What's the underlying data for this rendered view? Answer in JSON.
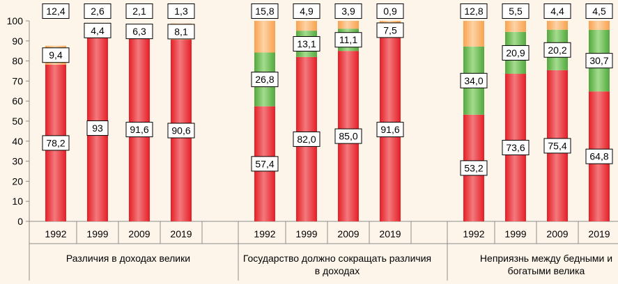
{
  "chart_data": {
    "type": "bar",
    "stacked": true,
    "ylim": [
      0,
      100
    ],
    "y_ticks": [
      "0",
      "10",
      "20",
      "30",
      "40",
      "50",
      "60",
      "70",
      "80",
      "90",
      "100"
    ],
    "grid": false,
    "colors": {
      "red": "#e8353b",
      "green": "#63b84e",
      "orange": "#fbb36a",
      "background": "#fef5ea"
    },
    "groups": [
      {
        "label": "Различия в доходах велики",
        "label_lines": [
          "Различия в доходах велики"
        ],
        "years": [
          "1992",
          "1999",
          "2009",
          "2019"
        ],
        "series": [
          {
            "color_key": "red",
            "values": [
              78.2,
              93,
              91.6,
              90.6
            ],
            "labels": [
              "78,2",
              "93",
              "91,6",
              "90,6"
            ]
          },
          {
            "color_key": "orange",
            "values": [
              9.4,
              4.4,
              6.3,
              8.1
            ],
            "labels": [
              "9,4",
              "4,4",
              "6,3",
              "8,1"
            ]
          },
          {
            "color_key": "none",
            "values": [
              12.4,
              2.6,
              2.1,
              1.3
            ],
            "labels": [
              "12,4",
              "2,6",
              "2,1",
              "1,3"
            ]
          }
        ]
      },
      {
        "label": "Государство должно сокращать различия в доходах",
        "label_lines": [
          "Государство должно сокращать различия",
          "в доходах"
        ],
        "years": [
          "1992",
          "1999",
          "2009",
          "2019"
        ],
        "series": [
          {
            "color_key": "red",
            "values": [
              57.4,
              82.0,
              85.0,
              91.6
            ],
            "labels": [
              "57,4",
              "82,0",
              "85,0",
              "91,6"
            ]
          },
          {
            "color_key": "green",
            "values": [
              26.8,
              13.1,
              11.1,
              7.5
            ],
            "labels": [
              "26,8",
              "13,1",
              "11,1",
              "7,5"
            ]
          },
          {
            "color_key": "orange",
            "values": [
              15.8,
              4.9,
              3.9,
              0.9
            ],
            "labels": [
              "15,8",
              "4,9",
              "3,9",
              "0,9"
            ]
          }
        ]
      },
      {
        "label": "Неприязнь между бедными и богатыми велика",
        "label_lines": [
          "Неприязнь между бедными и",
          "богатыми велика"
        ],
        "years": [
          "1992",
          "1999",
          "2009",
          "2019"
        ],
        "series": [
          {
            "color_key": "red",
            "values": [
              53.2,
              73.6,
              75.4,
              64.8
            ],
            "labels": [
              "53,2",
              "73,6",
              "75,4",
              "64,8"
            ]
          },
          {
            "color_key": "green",
            "values": [
              34.0,
              20.9,
              20.2,
              30.7
            ],
            "labels": [
              "34,0",
              "20,9",
              "20,2",
              "30,7"
            ]
          },
          {
            "color_key": "orange",
            "values": [
              12.8,
              5.5,
              4.4,
              4.5
            ],
            "labels": [
              "12,8",
              "5,5",
              "4,4",
              "4,5"
            ]
          }
        ]
      }
    ]
  }
}
